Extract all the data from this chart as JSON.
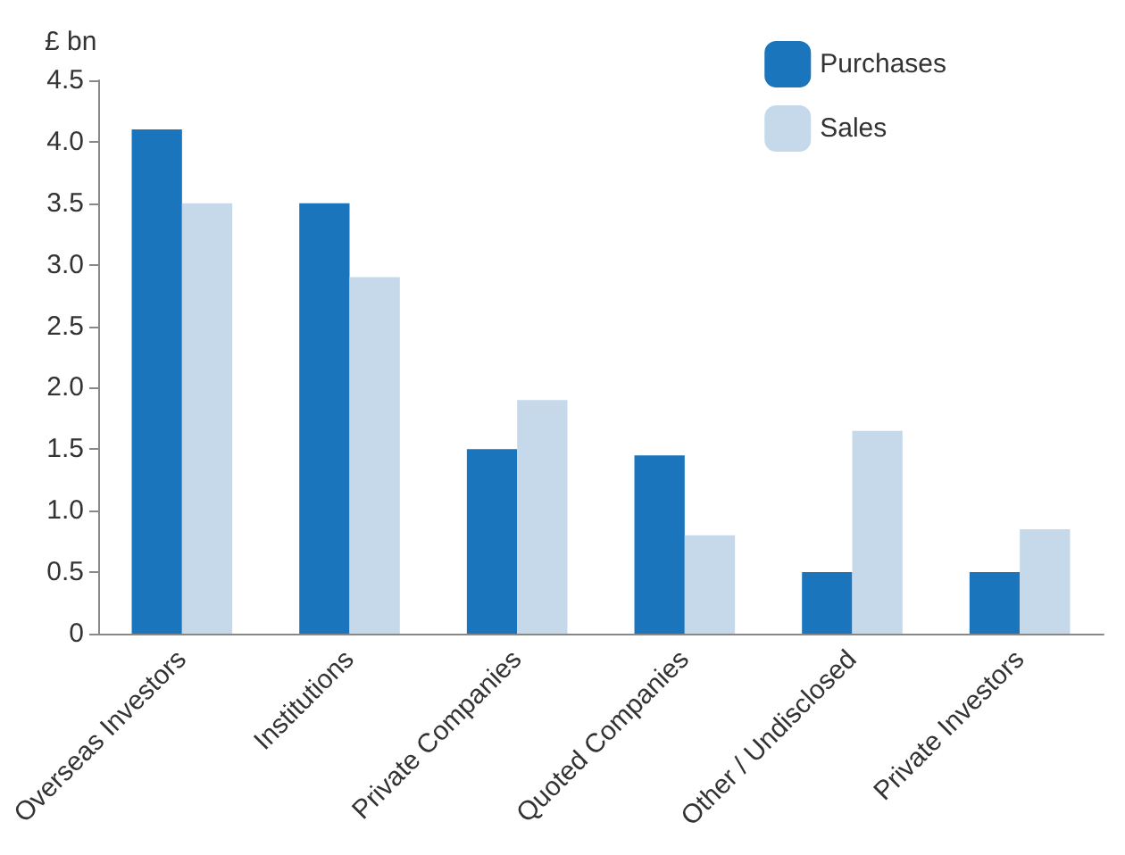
{
  "chart_data": {
    "type": "bar",
    "ylabel": "£ bn",
    "categories": [
      "Overseas Investors",
      "Institutions",
      "Private Companies",
      "Quoted Companies",
      "Other / Undisclosed",
      "Private Investors"
    ],
    "series": [
      {
        "name": "Purchases",
        "color": "#1a75bc",
        "values": [
          4.1,
          3.5,
          1.5,
          1.45,
          0.5,
          0.5
        ]
      },
      {
        "name": "Sales",
        "color": "#c5d9eb",
        "values": [
          3.5,
          2.9,
          1.9,
          0.8,
          1.65,
          0.85
        ]
      }
    ],
    "ylim": [
      0,
      4.5
    ],
    "yticks": [
      0,
      0.5,
      {
        "value": 1,
        "label": "1.0"
      },
      1.5,
      {
        "value": 2,
        "label": "2.0"
      },
      2.5,
      {
        "value": 3,
        "label": "3.0"
      },
      3.5,
      {
        "value": 4,
        "label": "4.0"
      },
      4.5
    ],
    "grid": false,
    "legend": "top right"
  }
}
